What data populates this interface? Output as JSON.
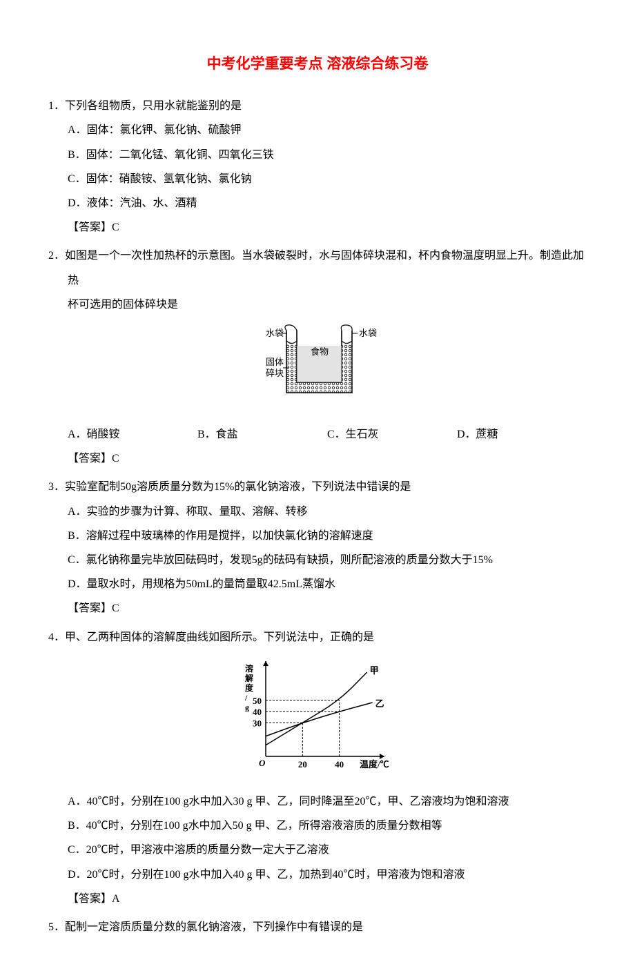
{
  "title": "中考化学重要考点 溶液综合练习卷",
  "q1": {
    "stem": "1．下列各组物质，只用水就能鉴别的是",
    "a": "A．固体：氯化钾、氯化钠、硫酸钾",
    "b": "B．固体：二氧化锰、氧化铜、四氧化三铁",
    "c": "C．固体：硝酸铵、氢氧化钠、氯化钠",
    "d": "D．液体：汽油、水、酒精",
    "answer": "【答案】C"
  },
  "q2": {
    "stem": "2．如图是一个一次性加热杯的示意图。当水袋破裂时，水与固体碎块混和，杯内食物温度明显上升。制造此加热",
    "stem_cont": "杯可选用的固体碎块是",
    "a": "A．硝酸铵",
    "b": "B．食盐",
    "c": "C．生石灰",
    "d": "D．蔗糖",
    "answer": "【答案】C",
    "diagram": {
      "label_left1": "水袋",
      "label_left2": "固体",
      "label_left3": "碎块",
      "label_right": "水袋",
      "label_center": "食物",
      "colors": {
        "outline": "#000000",
        "hatch": "#000000",
        "food_fill": "#cccccc"
      }
    }
  },
  "q3": {
    "stem": "3．实验室配制50g溶质质量分数为15%的氯化钠溶液，下列说法中错误的是",
    "a": "A．实验的步骤为计算、称取、量取、溶解、转移",
    "b": "B．溶解过程中玻璃棒的作用是搅拌，以加快氯化钠的溶解速度",
    "c": "C．氯化钠称量完毕放回砝码时，发现5g的砝码有缺损，则所配溶液的质量分数大于15%",
    "d": "D．量取水时，用规格为50mL的量筒量取42.5mL蒸馏水",
    "answer": "【答案】C"
  },
  "q4": {
    "stem": "4．甲、乙两种固体的溶解度曲线如图所示。下列说法中，正确的是",
    "a": "A．40℃时，分别在100 g水中加入30 g 甲、乙，同时降温至20℃，甲、乙溶液均为饱和溶液",
    "b": "B．40℃时，分别在100 g水中加入50 g 甲、乙，所得溶液溶质的质量分数相等",
    "c": "C．20℃时，甲溶液中溶质的质量分数一定大于乙溶液",
    "d": "D．20℃时，分别在100 g水中加入40 g 甲、乙，加热到40℃时，甲溶液为饱和溶液",
    "answer": "【答案】A",
    "chart": {
      "type": "line",
      "ylabel_vertical": "溶解度/g",
      "xlabel": "温度/℃",
      "x_ticks": [
        20,
        40
      ],
      "y_ticks": [
        30,
        40,
        50
      ],
      "xlim": [
        0,
        60
      ],
      "ylim": [
        0,
        80
      ],
      "series": {
        "jia": {
          "label": "甲",
          "points": [
            [
              0,
              10
            ],
            [
              20,
              30
            ],
            [
              40,
              50
            ],
            [
              55,
              75
            ]
          ],
          "color": "#000000",
          "width": 1.5
        },
        "yi": {
          "label": "乙",
          "points": [
            [
              0,
              18
            ],
            [
              20,
              30
            ],
            [
              40,
              40
            ],
            [
              58,
              48
            ]
          ],
          "color": "#000000",
          "width": 1.5
        }
      },
      "dashed": [
        [
          [
            20,
            0
          ],
          [
            20,
            30
          ]
        ],
        [
          [
            0,
            30
          ],
          [
            20,
            30
          ]
        ],
        [
          [
            40,
            0
          ],
          [
            40,
            50
          ]
        ],
        [
          [
            0,
            50
          ],
          [
            40,
            50
          ]
        ],
        [
          [
            0,
            40
          ],
          [
            40,
            40
          ]
        ]
      ],
      "origin_label": "O",
      "axis_color": "#000000",
      "background": "#ffffff"
    }
  },
  "q5": {
    "stem": "5．配制一定溶质质量分数的氯化钠溶液，下列操作中有错误的是"
  }
}
